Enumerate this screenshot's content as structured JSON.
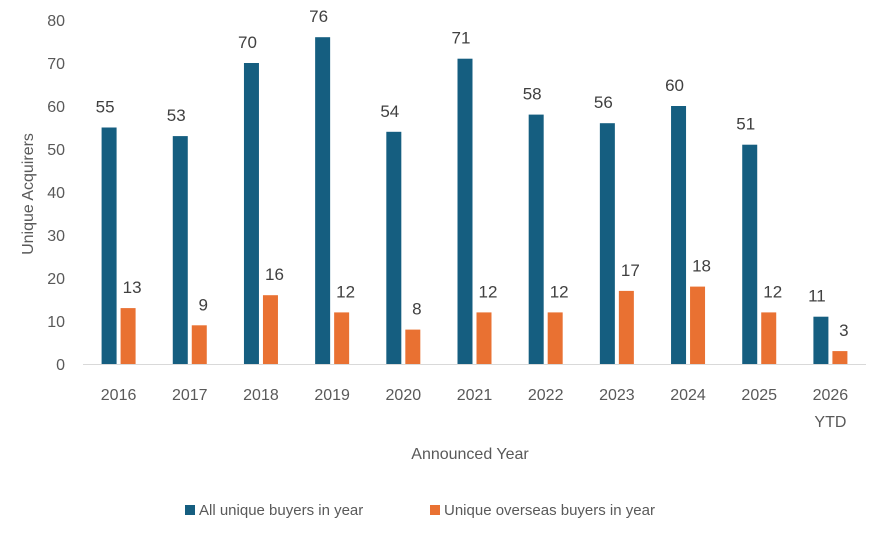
{
  "chart_data": {
    "type": "bar",
    "title": "",
    "xlabel": "Announced Year",
    "ylabel": "Unique Acquirers",
    "ylim": [
      0,
      80
    ],
    "yticks": [
      0,
      10,
      20,
      30,
      40,
      50,
      60,
      70,
      80
    ],
    "grid": false,
    "legend_position": "bottom",
    "categories": [
      [
        "2016"
      ],
      [
        "2017"
      ],
      [
        "2018"
      ],
      [
        "2019"
      ],
      [
        "2020"
      ],
      [
        "2021"
      ],
      [
        "2022"
      ],
      [
        "2023"
      ],
      [
        "2024"
      ],
      [
        "2025"
      ],
      [
        "2026",
        "YTD"
      ]
    ],
    "series": [
      {
        "name": "All unique buyers in year",
        "color": "#155e80",
        "values": [
          55,
          53,
          70,
          76,
          54,
          71,
          58,
          56,
          60,
          51,
          11
        ]
      },
      {
        "name": "Unique overseas buyers in year",
        "color": "#e97132",
        "values": [
          13,
          9,
          16,
          12,
          8,
          12,
          12,
          17,
          18,
          12,
          3
        ]
      }
    ]
  }
}
